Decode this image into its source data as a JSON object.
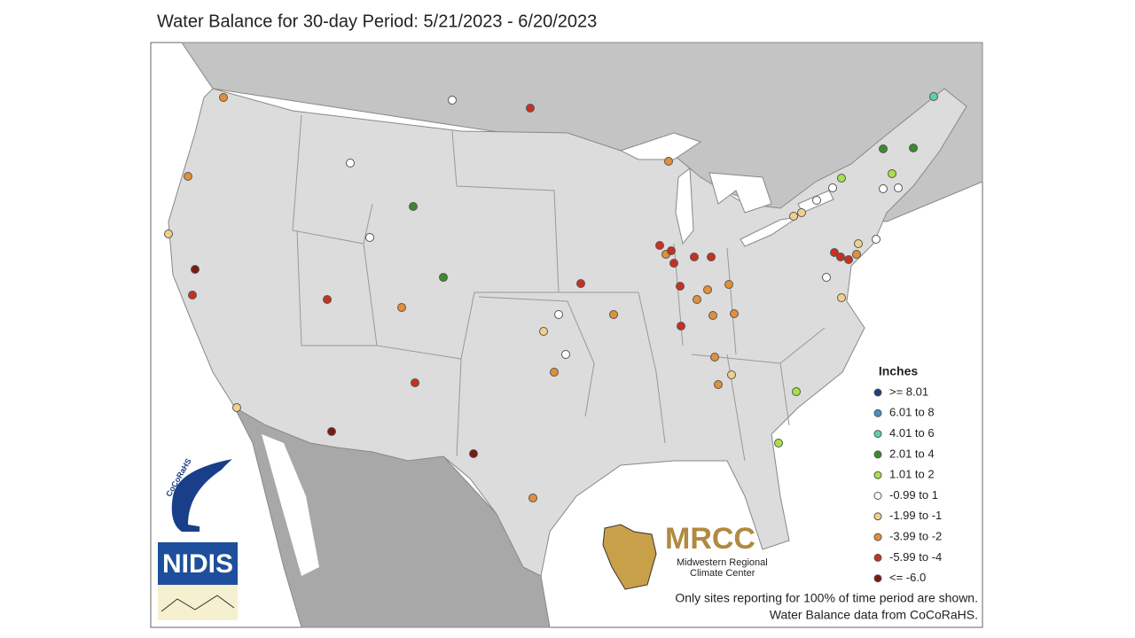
{
  "title": "Water Balance for 30-day Period: 5/21/2023 - 6/20/2023",
  "legend": {
    "title": "Inches",
    "items": [
      {
        "label": ">= 8.01",
        "color": "#1f3f7a"
      },
      {
        "label": "6.01 to 8",
        "color": "#4a90c0"
      },
      {
        "label": "4.01 to 6",
        "color": "#5fd0a8"
      },
      {
        "label": "2.01 to 4",
        "color": "#3c8a2e"
      },
      {
        "label": "1.01 to 2",
        "color": "#a8e048"
      },
      {
        "label": "-0.99 to 1",
        "color": "#ffffff"
      },
      {
        "label": "-1.99 to -1",
        "color": "#f3d08a"
      },
      {
        "label": "-3.99 to -2",
        "color": "#e0903a"
      },
      {
        "label": "-5.99 to -4",
        "color": "#c83020"
      },
      {
        "label": "<= -6.0",
        "color": "#7a1a10"
      }
    ]
  },
  "logos": {
    "cocorahs": "CoCoRaHS",
    "nidis": "NIDIS",
    "mrcc": "MRCC",
    "mrcc_line1": "Midwestern Regional",
    "mrcc_line2": "Climate Center"
  },
  "notes": [
    "Only sites reporting for 100% of time period are shown.",
    "Water Balance data from CoCoRaHS."
  ]
}
